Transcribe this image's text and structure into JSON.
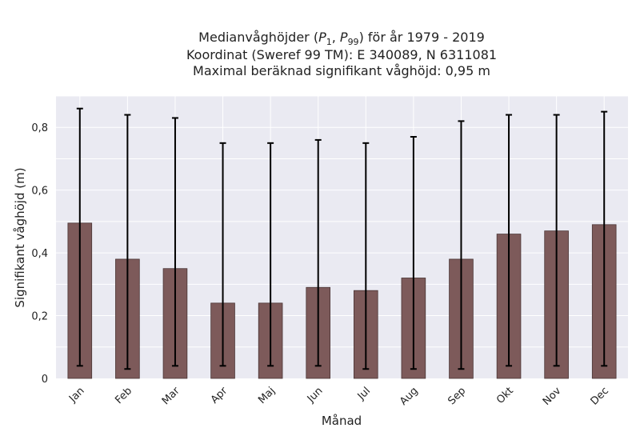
{
  "chart_data": {
    "type": "bar",
    "title_lines": [
      "Medianvåghöjder (P1, P99) för år 1979 - 2019",
      "Koordinat (Sweref 99 TM): E 340089, N 6311081",
      "Maximal beräknad signifikant våghöjd: 0,95 m"
    ],
    "xlabel": "Månad",
    "ylabel": "Signifikant våghöjd (m)",
    "categories": [
      "Jan",
      "Feb",
      "Mar",
      "Apr",
      "Maj",
      "Jun",
      "Jul",
      "Aug",
      "Sep",
      "Okt",
      "Nov",
      "Dec"
    ],
    "series": [
      {
        "values": [
          0.495,
          0.38,
          0.35,
          0.24,
          0.24,
          0.29,
          0.28,
          0.32,
          0.38,
          0.46,
          0.47,
          0.49
        ],
        "p1": [
          0.04,
          0.03,
          0.04,
          0.04,
          0.04,
          0.04,
          0.03,
          0.03,
          0.03,
          0.04,
          0.04,
          0.04
        ],
        "p99": [
          0.86,
          0.84,
          0.83,
          0.75,
          0.75,
          0.76,
          0.75,
          0.77,
          0.82,
          0.84,
          0.84,
          0.85
        ]
      }
    ],
    "ylim": [
      0,
      0.9
    ],
    "yticks": [
      0,
      0.2,
      0.4,
      0.6,
      0.8
    ],
    "ytick_labels": [
      "0",
      "0,2",
      "0,4",
      "0,6",
      "0,8"
    ],
    "grid": true,
    "colors": {
      "bar": "#7d5a5a",
      "bar_edge": "#4a3535",
      "errorbar": "#000000",
      "plot_background": "#eaeaf2",
      "grid": "#ffffff"
    }
  }
}
